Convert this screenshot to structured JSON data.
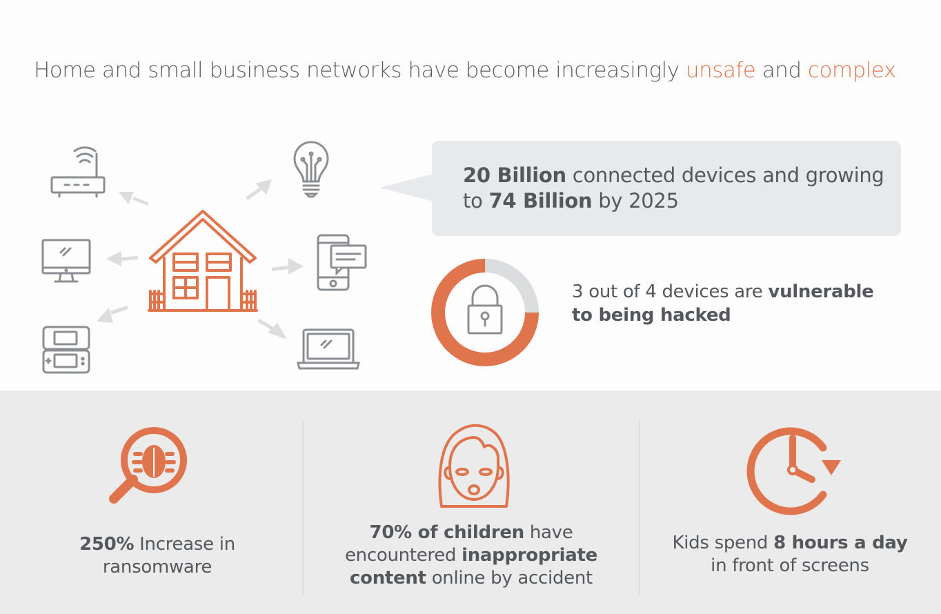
{
  "headline": {
    "part1": "Home and small business networks have become increasingly ",
    "accent1": "unsafe",
    "part2": " and ",
    "accent2": "complex"
  },
  "devices": {
    "icons": [
      "router-icon",
      "lightbulb-icon",
      "desktop-monitor-icon",
      "smartphone-chat-icon",
      "handheld-console-icon",
      "laptop-icon",
      "house-icon"
    ]
  },
  "bubble": {
    "bold1": "20 Billion",
    "text1": " connected devices and growing to ",
    "bold2": "74 Billion",
    "text2": " by 2025"
  },
  "vulnerable": {
    "text": "3 out of 4 devices are ",
    "bold": "vulnerable to being hacked",
    "fraction": 0.75
  },
  "stats": [
    {
      "icon": "magnifier-bug-icon",
      "bold": "250%",
      "text": " Increase in ransomware"
    },
    {
      "icon": "girl-face-icon",
      "bold1": "70% of children",
      "text1": " have encountered ",
      "bold2": "inappropriate content",
      "text2": " online by accident"
    },
    {
      "icon": "clock-icon",
      "text1": "Kids spend ",
      "bold": "8 hours a day",
      "text2": " in front of screens"
    }
  ],
  "colors": {
    "accent": "#e0754d",
    "text": "#54585d",
    "icon_gray": "#8a8d91",
    "arrow_gray": "#dcdddf",
    "panel": "#ebebec",
    "bubble": "#e8e9eb"
  }
}
